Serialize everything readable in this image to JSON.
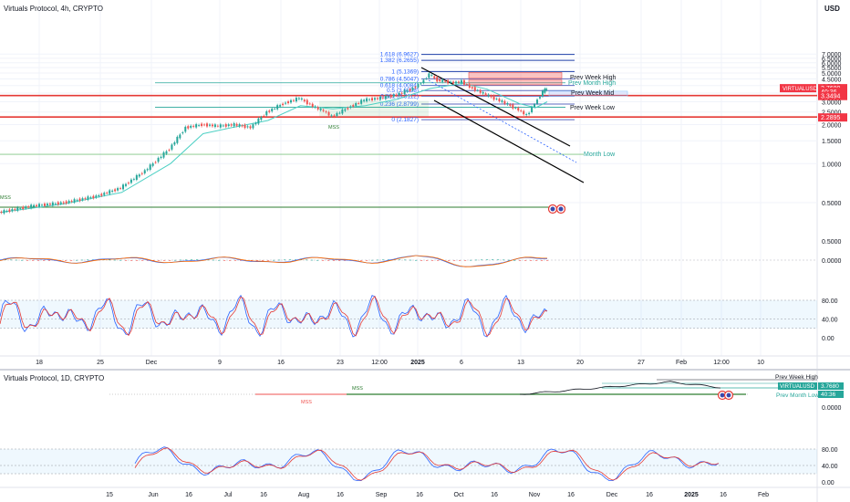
{
  "chart_data": {
    "type": "line",
    "main": {
      "title": "Virtuals Protocol, 4h, CRYPTO",
      "currency": "USD",
      "y_scale": "log",
      "y_ticks": [
        {
          "value": 7.0,
          "label": "7.0000"
        },
        {
          "value": 6.5,
          "label": "6.5000"
        },
        {
          "value": 6.0,
          "label": "6.0000"
        },
        {
          "value": 5.5,
          "label": "5.5000"
        },
        {
          "value": 5.0,
          "label": "5.0000"
        },
        {
          "value": 4.5,
          "label": "4.5000"
        },
        {
          "value": 4.0,
          "label": "4.0000"
        },
        {
          "value": 3.5,
          "label": "3.5000"
        },
        {
          "value": 3.0,
          "label": "3.0000"
        },
        {
          "value": 2.5,
          "label": "2.5000"
        },
        {
          "value": 2.0,
          "label": "2.0000"
        },
        {
          "value": 1.5,
          "label": "1.5000"
        },
        {
          "value": 1.0,
          "label": "1.0000"
        },
        {
          "value": 0.5,
          "label": "0.5000"
        }
      ],
      "x_ticks": [
        "18",
        "25",
        "Dec",
        "9",
        "16",
        "23",
        "12:00",
        "2025",
        "6",
        "13",
        "20",
        "27",
        "Feb",
        "12:00",
        "10"
      ],
      "price_series": [
        [
          "Nov 10",
          0.42
        ],
        [
          "Nov 14",
          0.47
        ],
        [
          "Nov 18",
          0.5
        ],
        [
          "Nov 22",
          0.56
        ],
        [
          "Nov 25",
          0.65
        ],
        [
          "Nov 28",
          0.88
        ],
        [
          "Dec 1",
          1.3
        ],
        [
          "Dec 3",
          1.9
        ],
        [
          "Dec 5",
          2.0
        ],
        [
          "Dec 7",
          1.95
        ],
        [
          "Dec 9",
          2.0
        ],
        [
          "Dec 11",
          1.9
        ],
        [
          "Dec 13",
          2.5
        ],
        [
          "Dec 15",
          2.9
        ],
        [
          "Dec 17",
          3.2
        ],
        [
          "Dec 19",
          2.7
        ],
        [
          "Dec 20",
          2.55
        ],
        [
          "Dec 21",
          2.3
        ],
        [
          "Dec 23",
          2.7
        ],
        [
          "Dec 25",
          3.1
        ],
        [
          "Dec 27",
          3.2
        ],
        [
          "Dec 29",
          3.4
        ],
        [
          "Dec 31",
          3.8
        ],
        [
          "Jan 1",
          4.2
        ],
        [
          "Jan 2",
          4.9
        ],
        [
          "Jan 3",
          4.4
        ],
        [
          "Jan 5",
          4.2
        ],
        [
          "Jan 6",
          4.3
        ],
        [
          "Jan 7",
          3.9
        ],
        [
          "Jan 9",
          3.4
        ],
        [
          "Jan 11",
          3.0
        ],
        [
          "Jan 13",
          2.6
        ],
        [
          "Jan 14",
          2.35
        ],
        [
          "Jan 15",
          2.9
        ],
        [
          "Jan 16",
          3.6
        ],
        [
          "Jan 16.4",
          3.78
        ]
      ],
      "ma_series": [
        [
          "Nov 10",
          0.42
        ],
        [
          "Nov 18",
          0.49
        ],
        [
          "Nov 25",
          0.6
        ],
        [
          "Dec 1",
          1.0
        ],
        [
          "Dec 5",
          1.7
        ],
        [
          "Dec 9",
          1.92
        ],
        [
          "Dec 13",
          2.15
        ],
        [
          "Dec 17",
          2.8
        ],
        [
          "Dec 21",
          2.65
        ],
        [
          "Dec 25",
          2.8
        ],
        [
          "Dec 29",
          3.15
        ],
        [
          "Jan 2",
          3.8
        ],
        [
          "Jan 6",
          4.15
        ],
        [
          "Jan 9",
          3.75
        ],
        [
          "Jan 13",
          2.9
        ],
        [
          "Jan 15",
          2.7
        ],
        [
          "Jan 16.4",
          3.0
        ]
      ],
      "fib_levels": [
        {
          "label": "1.618 (6.9627)",
          "value": 6.9627
        },
        {
          "label": "1.382 (6.2655)",
          "value": 6.2655
        },
        {
          "label": "1 (5.1369)",
          "value": 5.1369
        },
        {
          "label": "0.786 (4.5047)",
          "value": 4.5047
        },
        {
          "label": "0.618 (4.0084)",
          "value": 4.0084
        },
        {
          "label": "0.5 (3.6598)",
          "value": 3.6598
        },
        {
          "label": "0.382 (3.3112)",
          "value": 3.3112
        },
        {
          "label": "0.236 (2.8799)",
          "value": 2.8799
        },
        {
          "label": "0 (2.1827)",
          "value": 2.1827
        }
      ],
      "level_labels": [
        {
          "text": "Prev Week High",
          "value": 4.6
        },
        {
          "text": "Prev Month High",
          "value": 4.2
        },
        {
          "text": "Prev Week Mid",
          "value": 3.5
        },
        {
          "text": "Prev Week Low",
          "value": 2.7
        },
        {
          "text": "Month Low",
          "value": 1.18
        }
      ],
      "mss_labels": [
        "MSS",
        "MSS"
      ],
      "price_badges": [
        {
          "text": "VIRTUALUSD",
          "value": 3.768
        },
        {
          "text": "3.7680",
          "value": 3.768
        },
        {
          "text": "40:36",
          "value": 3.56
        },
        {
          "text": "3.3494",
          "value": 3.3494
        },
        {
          "text": "2.2895",
          "value": 2.2895
        }
      ],
      "red_lines": [
        3.3494,
        2.2895
      ]
    },
    "macd": {
      "y_ticks": [
        {
          "value": 0.5,
          "label": "0.5000"
        },
        {
          "value": 0,
          "label": "0.0000"
        }
      ]
    },
    "stoch_4h": {
      "y_ticks": [
        {
          "value": 80,
          "label": "80.00"
        },
        {
          "value": 40,
          "label": "40.00"
        },
        {
          "value": 0,
          "label": "0.00"
        }
      ]
    },
    "daily": {
      "title": "Virtuals Protocol, 1D, CRYPTO",
      "y_ticks": [
        {
          "value": 0,
          "label": "0.0000"
        }
      ],
      "x_ticks": [
        "15",
        "Jun",
        "16",
        "Jul",
        "16",
        "Aug",
        "16",
        "Sep",
        "16",
        "Oct",
        "16",
        "Nov",
        "16",
        "Dec",
        "16",
        "2025",
        "16",
        "Feb"
      ],
      "labels": [
        "Prev Week High",
        "VIRTUALUSD",
        "Prev Month Low",
        "MSS",
        "MSS"
      ],
      "badge_values": [
        "3.7680",
        "40:36"
      ]
    },
    "stoch_1d": {
      "y_ticks": [
        {
          "value": 80,
          "label": "80.00"
        },
        {
          "value": 40,
          "label": "40.00"
        },
        {
          "value": 0,
          "label": "0.00"
        }
      ]
    }
  }
}
